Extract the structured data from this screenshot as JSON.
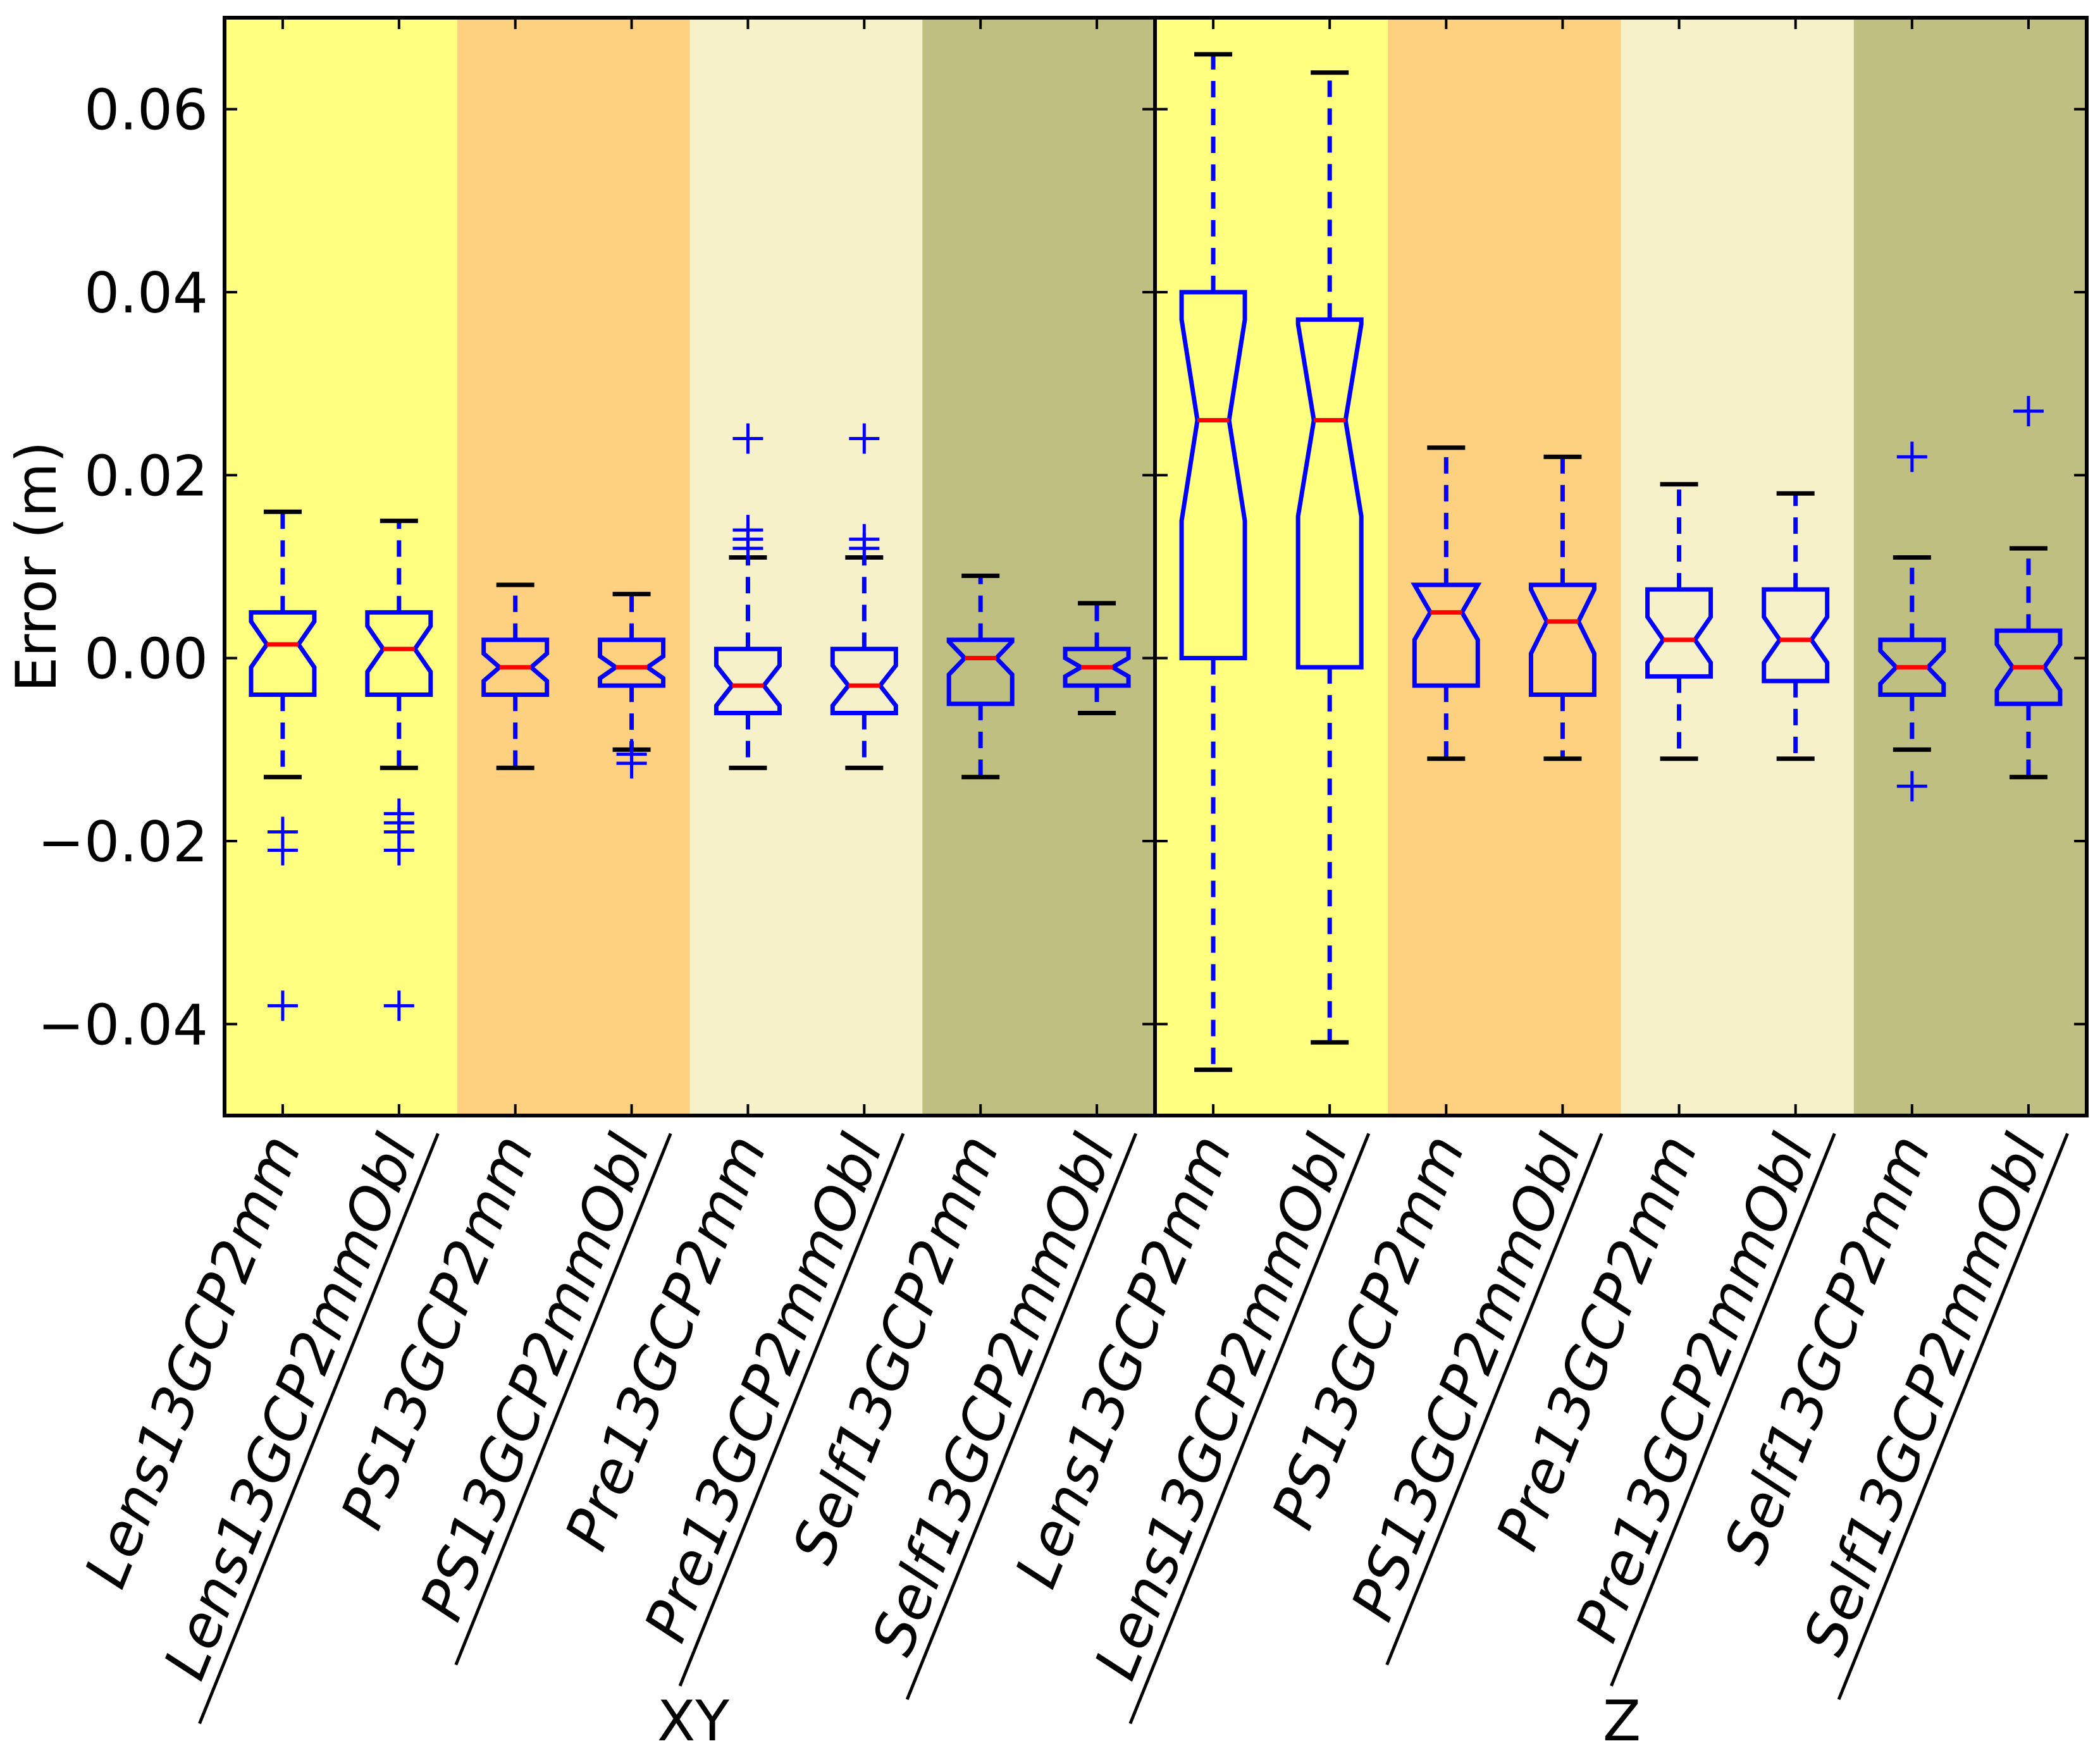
{
  "chart_data": {
    "type": "box",
    "ylabel": "Error (m)",
    "ylim": [
      -0.05,
      0.07
    ],
    "yticks": [
      -0.04,
      -0.02,
      0.0,
      0.02,
      0.04,
      0.06
    ],
    "ytick_labels": [
      "−0.04",
      "−0.02",
      "0.00",
      "0.02",
      "0.04",
      "0.06"
    ],
    "colors": {
      "band": [
        "#ffff80",
        "#fdd17f",
        "#f6f1c8",
        "#bfbf81"
      ],
      "box": "#0000ff",
      "median": "#ff0000",
      "cap": "#000000"
    },
    "groups": [
      {
        "label": "XY",
        "boxes": [
          {
            "label": "Lens13GCP2mm",
            "whislo": -0.013,
            "q1": -0.004,
            "med": 0.0015,
            "q3": 0.005,
            "whishi": 0.016,
            "notch": 0.0025,
            "fliers": [
              -0.019,
              -0.021,
              -0.038
            ]
          },
          {
            "label": "Lens13GCP2mmObl",
            "whislo": -0.012,
            "q1": -0.004,
            "med": 0.001,
            "q3": 0.005,
            "whishi": 0.015,
            "notch": 0.0025,
            "fliers": [
              -0.017,
              -0.018,
              -0.019,
              -0.021,
              -0.038
            ]
          },
          {
            "label": "PS13GCP2mm",
            "whislo": -0.012,
            "q1": -0.004,
            "med": -0.001,
            "q3": 0.002,
            "whishi": 0.008,
            "notch": 0.0015,
            "fliers": []
          },
          {
            "label": "PS13GCP2mmObl",
            "whislo": -0.01,
            "q1": -0.003,
            "med": -0.001,
            "q3": 0.002,
            "whishi": 0.007,
            "notch": 0.0012,
            "fliers": [
              -0.0105,
              -0.0115
            ]
          },
          {
            "label": "Pre13GCP2mm",
            "whislo": -0.012,
            "q1": -0.006,
            "med": -0.003,
            "q3": 0.001,
            "whishi": 0.011,
            "notch": 0.0022,
            "fliers": [
              0.012,
              0.013,
              0.014,
              0.024
            ]
          },
          {
            "label": "Pre13GCP2mmObl",
            "whislo": -0.012,
            "q1": -0.006,
            "med": -0.003,
            "q3": 0.001,
            "whishi": 0.011,
            "notch": 0.0022,
            "fliers": [
              0.012,
              0.013,
              0.024
            ]
          },
          {
            "label": "Self13GCP2mm",
            "whislo": -0.013,
            "q1": -0.005,
            "med": 0.0,
            "q3": 0.002,
            "whishi": 0.009,
            "notch": 0.0018,
            "fliers": []
          },
          {
            "label": "Self13GCP2mmObl",
            "whislo": -0.006,
            "q1": -0.003,
            "med": -0.001,
            "q3": 0.001,
            "whishi": 0.006,
            "notch": 0.001,
            "fliers": []
          }
        ]
      },
      {
        "label": "Z",
        "boxes": [
          {
            "label": "Lens13GCP2mm",
            "whislo": -0.045,
            "q1": 0.0,
            "med": 0.026,
            "q3": 0.04,
            "whishi": 0.066,
            "notch": 0.011,
            "fliers": []
          },
          {
            "label": "Lens13GCP2mmObl",
            "whislo": -0.042,
            "q1": -0.001,
            "med": 0.026,
            "q3": 0.037,
            "whishi": 0.064,
            "notch": 0.0105,
            "fliers": []
          },
          {
            "label": "PS13GCP2mm",
            "whislo": -0.011,
            "q1": -0.003,
            "med": 0.005,
            "q3": 0.008,
            "whishi": 0.023,
            "notch": 0.003,
            "fliers": []
          },
          {
            "label": "PS13GCP2mmObl",
            "whislo": -0.011,
            "q1": -0.004,
            "med": 0.004,
            "q3": 0.008,
            "whishi": 0.022,
            "notch": 0.0035,
            "fliers": []
          },
          {
            "label": "Pre13GCP2mm",
            "whislo": -0.011,
            "q1": -0.002,
            "med": 0.002,
            "q3": 0.0075,
            "whishi": 0.019,
            "notch": 0.0025,
            "fliers": []
          },
          {
            "label": "Pre13GCP2mmObl",
            "whislo": -0.011,
            "q1": -0.0025,
            "med": 0.002,
            "q3": 0.0075,
            "whishi": 0.018,
            "notch": 0.0025,
            "fliers": []
          },
          {
            "label": "Self13GCP2mm",
            "whislo": -0.01,
            "q1": -0.004,
            "med": -0.001,
            "q3": 0.002,
            "whishi": 0.011,
            "notch": 0.0018,
            "fliers": [
              0.022,
              -0.014
            ]
          },
          {
            "label": "Self13GCP2mmObl",
            "whislo": -0.013,
            "q1": -0.005,
            "med": -0.001,
            "q3": 0.003,
            "whishi": 0.012,
            "notch": 0.0025,
            "fliers": [
              0.027
            ]
          }
        ]
      }
    ]
  }
}
